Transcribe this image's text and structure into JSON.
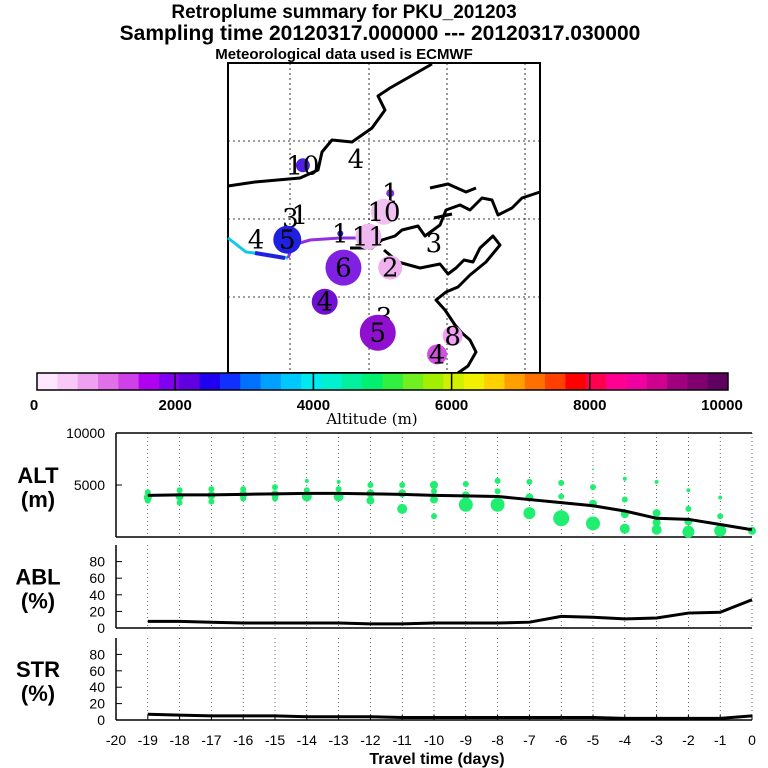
{
  "titles": {
    "line1": "Retroplume summary for PKU_201203",
    "line2": "Sampling time   20120317.000000 --- 20120317.030000",
    "line3": "Meteorological data used is ECMWF"
  },
  "colorbar": {
    "label": "Altitude (m)",
    "ticks": [
      "0",
      "2000",
      "4000",
      "6000",
      "8000",
      "10000"
    ],
    "min": 0,
    "max": 10000,
    "colors": [
      "#ffe8ff",
      "#f8c8f8",
      "#f0a0f0",
      "#e070e8",
      "#d040e8",
      "#b000f0",
      "#8000f0",
      "#6000e0",
      "#2000f0",
      "#1030ff",
      "#0070ff",
      "#00a0ff",
      "#00c8ff",
      "#00e8f0",
      "#00f0d0",
      "#00f0a0",
      "#00f070",
      "#30f040",
      "#70f020",
      "#a0f000",
      "#d0f000",
      "#f0f000",
      "#ffd000",
      "#ffa000",
      "#ff7000",
      "#ff4000",
      "#ff0000",
      "#ff0050",
      "#ff0090",
      "#f000a0",
      "#d00090",
      "#a00080",
      "#800070",
      "#600060"
    ]
  },
  "map": {
    "markers": [
      {
        "label": "0",
        "lon": 0.5,
        "lat": 0.49,
        "r": 5,
        "color": "#6010e0"
      },
      {
        "label": "1",
        "lon": 0.23,
        "lat": 0.49,
        "r": 0,
        "color": "#20d0c0"
      },
      {
        "label": "1",
        "lon": 0.36,
        "lat": 0.55,
        "r": 3,
        "color": "#2020d0"
      },
      {
        "label": "1",
        "lon": 0.52,
        "lat": 0.42,
        "r": 4,
        "color": "#8030e0"
      },
      {
        "label": "2",
        "lon": 0.52,
        "lat": 0.66,
        "r": 12,
        "color": "#f0b0f0"
      },
      {
        "label": "3",
        "lon": 0.66,
        "lat": 0.58,
        "r": 0,
        "color": "#f0b0f0"
      },
      {
        "label": "3",
        "lon": 0.2,
        "lat": 0.5,
        "r": 0,
        "color": "#000000"
      },
      {
        "label": "3",
        "lon": 0.5,
        "lat": 0.82,
        "r": 0,
        "color": "#d040e0"
      },
      {
        "label": "4",
        "lon": 0.41,
        "lat": 0.31,
        "r": 0,
        "color": "#00c0e0"
      },
      {
        "label": "4",
        "lon": 0.09,
        "lat": 0.57,
        "r": 0,
        "color": "#00c0e0"
      },
      {
        "label": "4",
        "lon": 0.31,
        "lat": 0.77,
        "r": 13,
        "color": "#7010d0"
      },
      {
        "label": "4",
        "lon": 0.67,
        "lat": 0.94,
        "r": 10,
        "color": "#d050e0"
      },
      {
        "label": "5",
        "lon": 0.19,
        "lat": 0.57,
        "r": 14,
        "color": "#2020e0"
      },
      {
        "label": "5",
        "lon": 0.48,
        "lat": 0.87,
        "r": 18,
        "color": "#9010d0"
      },
      {
        "label": "6",
        "lon": 0.37,
        "lat": 0.66,
        "r": 18,
        "color": "#8020e0"
      },
      {
        "label": "8",
        "lon": 0.72,
        "lat": 0.88,
        "r": 10,
        "color": "#f0a0f0"
      },
      {
        "label": "10",
        "lon": 0.24,
        "lat": 0.33,
        "r": 7,
        "color": "#5020e0"
      },
      {
        "label": "10",
        "lon": 0.5,
        "lat": 0.48,
        "r": 13,
        "color": "#f0c0f0"
      },
      {
        "label": "11",
        "lon": 0.45,
        "lat": 0.56,
        "r": 13,
        "color": "#f0b8f0"
      }
    ]
  },
  "chart_data": [
    {
      "type": "scatter",
      "panel": "ALT",
      "ylabel_line1": "ALT",
      "ylabel_line2": "(m)",
      "x": [
        -19,
        -18,
        -17,
        -16,
        -15,
        -14,
        -13,
        -12,
        -11,
        -10,
        -9,
        -8,
        -7,
        -6,
        -5,
        -4,
        -3,
        -2,
        -1,
        0
      ],
      "mean_altitude": [
        4000,
        4050,
        4050,
        4100,
        4150,
        4200,
        4200,
        4150,
        4100,
        4000,
        3950,
        3900,
        3600,
        3300,
        3000,
        2500,
        1800,
        1700,
        1200,
        700
      ],
      "xlim": [
        -20,
        0
      ],
      "ylim": [
        0,
        10000
      ],
      "yticks": [
        "10000",
        "5000"
      ],
      "clusters": [
        {
          "x": -19,
          "pts": [
            [
              3800,
              4
            ],
            [
              4300,
              3
            ],
            [
              3500,
              3
            ]
          ]
        },
        {
          "x": -18,
          "pts": [
            [
              3900,
              4
            ],
            [
              4500,
              3
            ],
            [
              3300,
              3
            ]
          ]
        },
        {
          "x": -17,
          "pts": [
            [
              4000,
              4
            ],
            [
              4600,
              3
            ],
            [
              3400,
              3
            ]
          ]
        },
        {
          "x": -16,
          "pts": [
            [
              4100,
              4
            ],
            [
              4600,
              3
            ],
            [
              3700,
              3
            ]
          ]
        },
        {
          "x": -15,
          "pts": [
            [
              4100,
              4
            ],
            [
              4800,
              3
            ],
            [
              3700,
              3
            ]
          ]
        },
        {
          "x": -14,
          "pts": [
            [
              3900,
              5
            ],
            [
              5400,
              2
            ],
            [
              4500,
              3
            ]
          ]
        },
        {
          "x": -13,
          "pts": [
            [
              3900,
              5
            ],
            [
              5300,
              2
            ],
            [
              4600,
              3
            ]
          ]
        },
        {
          "x": -12,
          "pts": [
            [
              3500,
              4
            ],
            [
              5000,
              3
            ],
            [
              4200,
              4
            ]
          ]
        },
        {
          "x": -11,
          "pts": [
            [
              2700,
              5
            ],
            [
              5000,
              3
            ],
            [
              4200,
              4
            ]
          ]
        },
        {
          "x": -10,
          "pts": [
            [
              2000,
              3
            ],
            [
              3600,
              4
            ],
            [
              5000,
              4
            ],
            [
              4400,
              3
            ]
          ]
        },
        {
          "x": -9,
          "pts": [
            [
              3100,
              7
            ],
            [
              5100,
              3
            ],
            [
              4000,
              4
            ]
          ]
        },
        {
          "x": -8,
          "pts": [
            [
              3100,
              7
            ],
            [
              5400,
              3
            ],
            [
              4400,
              3
            ]
          ]
        },
        {
          "x": -7,
          "pts": [
            [
              2300,
              6
            ],
            [
              5300,
              3
            ],
            [
              3800,
              4
            ]
          ]
        },
        {
          "x": -6,
          "pts": [
            [
              1800,
              8
            ],
            [
              5200,
              3
            ],
            [
              3900,
              3
            ]
          ]
        },
        {
          "x": -5,
          "pts": [
            [
              1300,
              7
            ],
            [
              6500,
              1
            ],
            [
              4800,
              3
            ],
            [
              3200,
              4
            ]
          ]
        },
        {
          "x": -4,
          "pts": [
            [
              800,
              5
            ],
            [
              5600,
              2
            ],
            [
              3600,
              3
            ],
            [
              2200,
              4
            ]
          ]
        },
        {
          "x": -3,
          "pts": [
            [
              700,
              5
            ],
            [
              5300,
              2
            ],
            [
              2300,
              4
            ],
            [
              1400,
              4
            ]
          ]
        },
        {
          "x": -2,
          "pts": [
            [
              500,
              6
            ],
            [
              4500,
              2
            ],
            [
              2700,
              3
            ],
            [
              1500,
              4
            ]
          ]
        },
        {
          "x": -1,
          "pts": [
            [
              600,
              6
            ],
            [
              3800,
              2
            ],
            [
              2000,
              3
            ]
          ]
        },
        {
          "x": 0,
          "pts": [
            [
              600,
              4
            ]
          ]
        }
      ]
    },
    {
      "type": "line",
      "panel": "ABL",
      "ylabel_line1": "ABL",
      "ylabel_line2": "(%)",
      "x": [
        -19,
        -18,
        -17,
        -16,
        -15,
        -14,
        -13,
        -12,
        -11,
        -10,
        -9,
        -8,
        -7,
        -6,
        -5,
        -4,
        -3,
        -2,
        -1,
        0
      ],
      "values": [
        8,
        8,
        7,
        6,
        6,
        6,
        6,
        5,
        5,
        6,
        6,
        6,
        7,
        14,
        13,
        11,
        12,
        18,
        19,
        34
      ],
      "xlim": [
        -20,
        0
      ],
      "ylim": [
        0,
        100
      ],
      "yticks": [
        "80",
        "60",
        "40",
        "20",
        "0"
      ]
    },
    {
      "type": "line",
      "panel": "STR",
      "ylabel_line1": "STR",
      "ylabel_line2": "(%)",
      "x": [
        -19,
        -18,
        -17,
        -16,
        -15,
        -14,
        -13,
        -12,
        -11,
        -10,
        -9,
        -8,
        -7,
        -6,
        -5,
        -4,
        -3,
        -2,
        -1,
        0
      ],
      "values": [
        7,
        6,
        5,
        5,
        5,
        4,
        4,
        4,
        3,
        3,
        3,
        3,
        3,
        3,
        3,
        2,
        2,
        2,
        2,
        5
      ],
      "xlim": [
        -20,
        0
      ],
      "ylim": [
        0,
        100
      ],
      "yticks": [
        "80",
        "60",
        "40",
        "20",
        "0"
      ]
    }
  ],
  "axis": {
    "xlabel": "Travel time (days)",
    "xticks": [
      "-20",
      "-19",
      "-18",
      "-17",
      "-16",
      "-15",
      "-14",
      "-13",
      "-12",
      "-11",
      "-10",
      "-9",
      "-8",
      "-7",
      "-6",
      "-5",
      "-4",
      "-3",
      "-2",
      "-1",
      "0"
    ]
  }
}
